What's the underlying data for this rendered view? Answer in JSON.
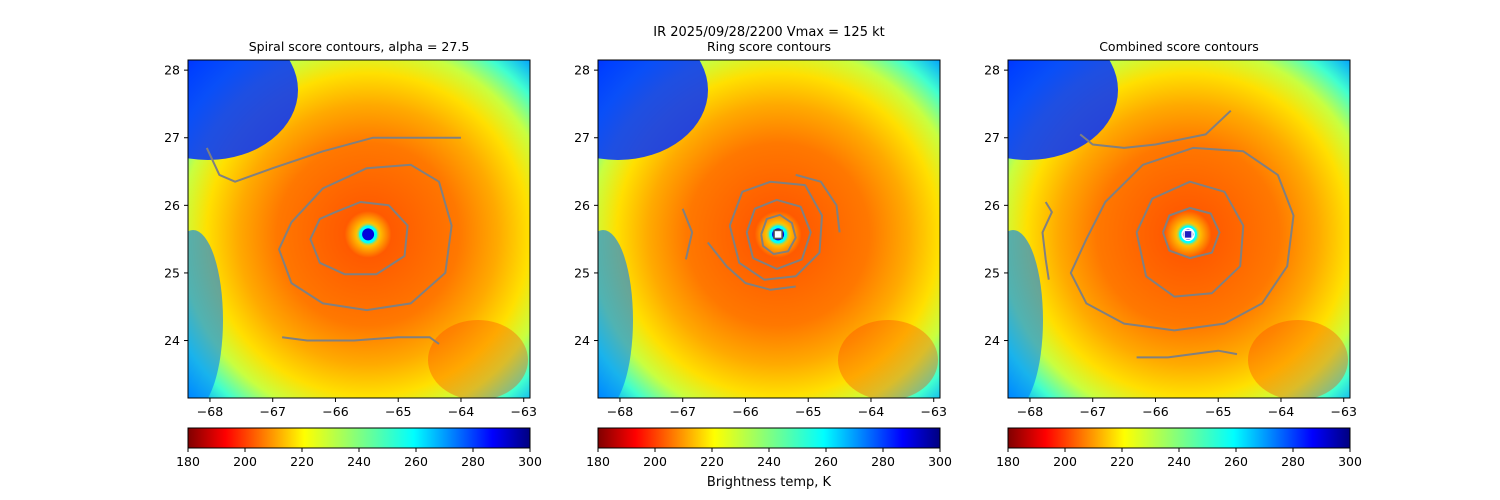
{
  "figure": {
    "suptitle_line1": "IR  2025/09/28/2200    Vmax = 125 kt",
    "colorbar_label": "Brightness temp, K"
  },
  "colorbar": {
    "ticks": [
      "180",
      "200",
      "220",
      "240",
      "260",
      "280",
      "300"
    ],
    "vmin": 180,
    "vmax": 300,
    "colormap": "jet_r"
  },
  "chart_data": [
    {
      "type": "heatmap",
      "title": "Spiral score contours, alpha = 27.5",
      "xlim": [
        -68.35,
        -62.9
      ],
      "ylim": [
        23.15,
        28.15
      ],
      "xticks": [
        "-68",
        "-67",
        "-66",
        "-65",
        "-64",
        "-63"
      ],
      "yticks": [
        "24",
        "25",
        "26",
        "27",
        "28"
      ],
      "storm_center": [
        -65.48,
        25.57
      ],
      "contour_color": "#808080",
      "contours": [
        [
          [
            -66.0,
            25.9
          ],
          [
            -65.6,
            26.05
          ],
          [
            -65.15,
            26.0
          ],
          [
            -64.85,
            25.7
          ],
          [
            -64.9,
            25.25
          ],
          [
            -65.35,
            24.98
          ],
          [
            -65.85,
            24.98
          ],
          [
            -66.25,
            25.15
          ],
          [
            -66.4,
            25.5
          ],
          [
            -66.25,
            25.8
          ],
          [
            -66.0,
            25.9
          ]
        ],
        [
          [
            -66.7,
            25.75
          ],
          [
            -66.2,
            26.25
          ],
          [
            -65.5,
            26.55
          ],
          [
            -64.8,
            26.6
          ],
          [
            -64.35,
            26.35
          ],
          [
            -64.15,
            25.7
          ],
          [
            -64.25,
            25.0
          ],
          [
            -64.8,
            24.55
          ],
          [
            -65.5,
            24.45
          ],
          [
            -66.2,
            24.55
          ],
          [
            -66.7,
            24.85
          ],
          [
            -66.9,
            25.35
          ],
          [
            -66.7,
            25.75
          ]
        ],
        [
          [
            -68.05,
            26.85
          ],
          [
            -67.85,
            26.45
          ],
          [
            -67.6,
            26.35
          ],
          [
            -67.0,
            26.55
          ],
          [
            -66.2,
            26.8
          ],
          [
            -65.4,
            27.0
          ],
          [
            -64.8,
            27.0
          ],
          [
            -64.0,
            27.0
          ]
        ],
        [
          [
            -66.85,
            24.05
          ],
          [
            -66.45,
            24.0
          ],
          [
            -65.7,
            24.0
          ],
          [
            -65.0,
            24.05
          ],
          [
            -64.5,
            24.05
          ],
          [
            -64.35,
            23.95
          ]
        ]
      ],
      "markers": []
    },
    {
      "type": "heatmap",
      "title": "Ring score contours",
      "xlim": [
        -68.35,
        -62.9
      ],
      "ylim": [
        23.15,
        28.15
      ],
      "xticks": [
        "-68",
        "-67",
        "-66",
        "-65",
        "-64",
        "-63"
      ],
      "yticks": [
        "24",
        "25",
        "26",
        "27",
        "28"
      ],
      "storm_center": [
        -65.48,
        25.57
      ],
      "contour_color": "#808080",
      "contours": [
        [
          [
            -65.75,
            25.57
          ],
          [
            -65.66,
            25.8
          ],
          [
            -65.45,
            25.86
          ],
          [
            -65.26,
            25.74
          ],
          [
            -65.2,
            25.52
          ],
          [
            -65.32,
            25.32
          ],
          [
            -65.55,
            25.28
          ],
          [
            -65.72,
            25.4
          ],
          [
            -65.75,
            25.57
          ]
        ],
        [
          [
            -65.98,
            25.6
          ],
          [
            -65.85,
            25.95
          ],
          [
            -65.5,
            26.08
          ],
          [
            -65.12,
            25.98
          ],
          [
            -64.96,
            25.6
          ],
          [
            -65.1,
            25.2
          ],
          [
            -65.5,
            25.06
          ],
          [
            -65.88,
            25.22
          ],
          [
            -65.98,
            25.6
          ]
        ],
        [
          [
            -66.25,
            25.7
          ],
          [
            -66.05,
            26.2
          ],
          [
            -65.6,
            26.35
          ],
          [
            -65.05,
            26.3
          ],
          [
            -64.78,
            25.85
          ],
          [
            -64.82,
            25.3
          ],
          [
            -65.2,
            24.95
          ],
          [
            -65.7,
            24.9
          ],
          [
            -66.1,
            25.15
          ],
          [
            -66.25,
            25.7
          ]
        ],
        [
          [
            -66.6,
            25.45
          ],
          [
            -66.3,
            25.1
          ],
          [
            -66.0,
            24.85
          ],
          [
            -65.6,
            24.75
          ],
          [
            -65.2,
            24.8
          ]
        ],
        [
          [
            -67.0,
            25.95
          ],
          [
            -66.85,
            25.6
          ],
          [
            -66.95,
            25.2
          ]
        ],
        [
          [
            -65.2,
            26.45
          ],
          [
            -64.8,
            26.35
          ],
          [
            -64.55,
            26.0
          ],
          [
            -64.5,
            25.6
          ]
        ]
      ],
      "markers": [
        {
          "x": -65.48,
          "y": 25.57,
          "shape": "square",
          "fill": "#ffffff",
          "stroke": "#555555"
        }
      ]
    },
    {
      "type": "heatmap",
      "title": "Combined score contours",
      "xlim": [
        -68.35,
        -62.9
      ],
      "ylim": [
        23.15,
        28.15
      ],
      "xticks": [
        "-68",
        "-67",
        "-66",
        "-65",
        "-64",
        "-63"
      ],
      "yticks": [
        "24",
        "25",
        "26",
        "27",
        "28"
      ],
      "storm_center": [
        -65.48,
        25.57
      ],
      "contour_color": "#808080",
      "contours": [
        [
          [
            -65.88,
            25.6
          ],
          [
            -65.78,
            25.85
          ],
          [
            -65.45,
            25.96
          ],
          [
            -65.12,
            25.88
          ],
          [
            -64.98,
            25.6
          ],
          [
            -65.1,
            25.3
          ],
          [
            -65.45,
            25.22
          ],
          [
            -65.78,
            25.33
          ],
          [
            -65.88,
            25.6
          ]
        ],
        [
          [
            -66.3,
            25.6
          ],
          [
            -66.05,
            26.1
          ],
          [
            -65.45,
            26.35
          ],
          [
            -64.9,
            26.2
          ],
          [
            -64.6,
            25.7
          ],
          [
            -64.65,
            25.1
          ],
          [
            -65.1,
            24.7
          ],
          [
            -65.7,
            24.65
          ],
          [
            -66.15,
            24.95
          ],
          [
            -66.3,
            25.6
          ]
        ],
        [
          [
            -67.1,
            25.5
          ],
          [
            -66.8,
            26.05
          ],
          [
            -66.2,
            26.6
          ],
          [
            -65.4,
            26.85
          ],
          [
            -64.6,
            26.8
          ],
          [
            -64.05,
            26.45
          ],
          [
            -63.8,
            25.85
          ],
          [
            -63.9,
            25.1
          ],
          [
            -64.3,
            24.55
          ],
          [
            -64.9,
            24.25
          ],
          [
            -65.7,
            24.15
          ],
          [
            -66.5,
            24.25
          ],
          [
            -67.1,
            24.55
          ],
          [
            -67.35,
            25.0
          ],
          [
            -67.1,
            25.5
          ]
        ],
        [
          [
            -67.75,
            26.05
          ],
          [
            -67.65,
            25.9
          ],
          [
            -67.8,
            25.6
          ],
          [
            -67.75,
            25.2
          ],
          [
            -67.7,
            24.9
          ]
        ],
        [
          [
            -67.2,
            27.05
          ],
          [
            -67.0,
            26.9
          ],
          [
            -66.5,
            26.85
          ],
          [
            -66.0,
            26.9
          ],
          [
            -65.2,
            27.05
          ],
          [
            -64.8,
            27.4
          ]
        ],
        [
          [
            -66.3,
            23.75
          ],
          [
            -65.8,
            23.75
          ],
          [
            -65.0,
            23.85
          ],
          [
            -64.7,
            23.8
          ]
        ]
      ],
      "markers": [
        {
          "x": -65.48,
          "y": 25.57,
          "shape": "circle",
          "fill": "#2020c0",
          "stroke": "#ffffff"
        },
        {
          "x": -65.48,
          "y": 25.57,
          "shape": "square",
          "fill": "#2020c0",
          "stroke": "#ffffff"
        }
      ]
    }
  ]
}
